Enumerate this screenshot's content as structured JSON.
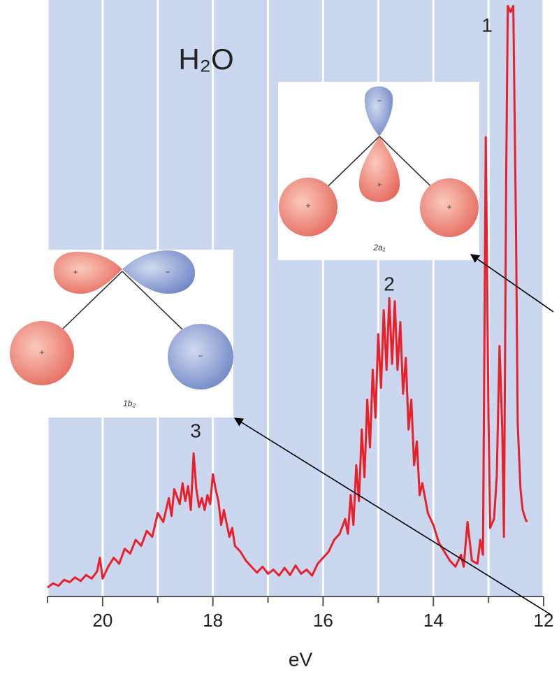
{
  "chart_data": {
    "type": "line",
    "title": "H₂O",
    "x_label": "eV",
    "x": [
      21.0,
      20.9,
      20.8,
      20.7,
      20.6,
      20.5,
      20.4,
      20.3,
      20.2,
      20.1,
      20.05,
      20.0,
      19.9,
      19.8,
      19.7,
      19.6,
      19.5,
      19.4,
      19.3,
      19.2,
      19.1,
      19.0,
      18.9,
      18.8,
      18.75,
      18.7,
      18.6,
      18.55,
      18.5,
      18.45,
      18.4,
      18.35,
      18.3,
      18.25,
      18.2,
      18.15,
      18.1,
      18.05,
      18.0,
      17.95,
      17.9,
      17.85,
      17.8,
      17.7,
      17.65,
      17.6,
      17.5,
      17.4,
      17.3,
      17.2,
      17.1,
      17.0,
      16.9,
      16.8,
      16.7,
      16.6,
      16.5,
      16.4,
      16.3,
      16.2,
      16.1,
      16.0,
      15.9,
      15.8,
      15.7,
      15.6,
      15.55,
      15.5,
      15.45,
      15.4,
      15.35,
      15.3,
      15.25,
      15.2,
      15.15,
      15.1,
      15.05,
      15.0,
      14.95,
      14.9,
      14.85,
      14.8,
      14.75,
      14.7,
      14.65,
      14.6,
      14.55,
      14.5,
      14.45,
      14.4,
      14.35,
      14.3,
      14.25,
      14.2,
      14.1,
      14.0,
      13.9,
      13.8,
      13.7,
      13.6,
      13.5,
      13.45,
      13.38,
      13.3,
      13.2,
      13.15,
      13.1,
      13.05,
      13.0,
      12.97,
      12.9,
      12.85,
      12.8,
      12.75,
      12.72,
      12.68,
      12.65,
      12.6,
      12.55,
      12.5,
      12.47,
      12.42,
      12.38,
      12.33,
      12.3
    ],
    "values": [
      1.5,
      2.2,
      1.8,
      2.8,
      2.4,
      3.2,
      2.6,
      3.6,
      3.0,
      4.2,
      6.5,
      3.0,
      5.0,
      6.5,
      5.5,
      8.0,
      7.2,
      9.5,
      8.5,
      11.0,
      10.0,
      14.0,
      12.5,
      16.5,
      13.5,
      18.0,
      15.5,
      19.0,
      16.0,
      18.5,
      14.5,
      24.0,
      18.0,
      15.0,
      16.5,
      14.5,
      17.0,
      15.5,
      20.5,
      18.0,
      16.0,
      12.0,
      14.5,
      10.0,
      11.5,
      8.5,
      7.5,
      6.0,
      5.0,
      4.0,
      5.0,
      3.8,
      4.5,
      3.5,
      4.8,
      3.6,
      5.2,
      3.8,
      4.5,
      3.5,
      5.5,
      6.5,
      7.5,
      9.5,
      10.5,
      13.0,
      10.5,
      17.0,
      12.0,
      22.0,
      16.0,
      28.0,
      20.0,
      33.0,
      25.0,
      38.0,
      30.0,
      44.0,
      35.0,
      48.0,
      38.0,
      50.0,
      39.0,
      49.5,
      38.0,
      46.0,
      34.0,
      40.0,
      28.0,
      33.0,
      22.0,
      26.0,
      17.0,
      19.0,
      14.0,
      12.0,
      9.0,
      7.5,
      6.0,
      5.0,
      7.0,
      5.0,
      12.5,
      6.0,
      5.5,
      9.5,
      7.0,
      77.0,
      30.0,
      11.5,
      13.0,
      20.0,
      42.0,
      28.0,
      10.0,
      70.0,
      99.0,
      98.0,
      99.0,
      60.0,
      29.0,
      18.0,
      14.5,
      13.0,
      12.5
    ],
    "color": "#e8202a",
    "background": "#cbd7ee",
    "xlim": [
      21,
      12
    ],
    "ylim": [
      0,
      100
    ],
    "xticks": [
      20,
      18,
      16,
      14,
      12
    ],
    "xminorticks": [
      21,
      19,
      17,
      15,
      13
    ],
    "grid": true,
    "annotations": [
      "1",
      "2",
      "3"
    ],
    "insets": [
      {
        "label": "2a₁",
        "signs": [
          "−",
          "+",
          "+",
          "+"
        ]
      },
      {
        "label": "1b₂",
        "signs": [
          "+",
          "−",
          "+",
          "−"
        ]
      }
    ]
  }
}
